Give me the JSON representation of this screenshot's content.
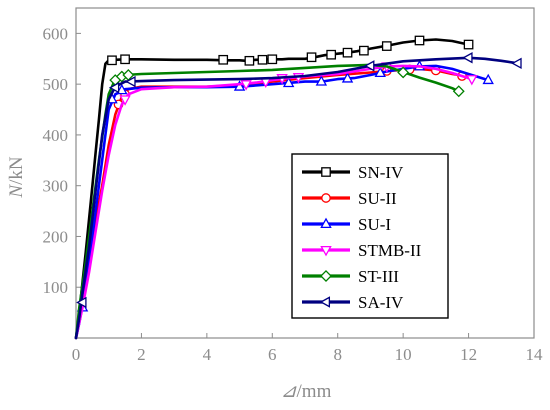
{
  "chart_data": {
    "type": "line",
    "title": "",
    "xlabel": "⊿/mm",
    "xlabel_symbol": "⊿",
    "xlabel_unit": "/mm",
    "ylabel": "N/kN",
    "ylabel_symbol": "N",
    "ylabel_unit": "/kN",
    "xlim": [
      0,
      14
    ],
    "ylim": [
      0,
      650
    ],
    "xticks": [
      0,
      2,
      4,
      6,
      8,
      10,
      12,
      14
    ],
    "yticks": [
      100,
      200,
      300,
      400,
      500,
      600
    ],
    "grid": false,
    "legend_position": "lower-right",
    "series": [
      {
        "name": "SN-IV",
        "color": "#000000",
        "marker": "square",
        "points": [
          [
            0,
            0
          ],
          [
            0.1,
            50
          ],
          [
            0.2,
            110
          ],
          [
            0.3,
            170
          ],
          [
            0.4,
            235
          ],
          [
            0.5,
            300
          ],
          [
            0.6,
            365
          ],
          [
            0.7,
            430
          ],
          [
            0.8,
            500
          ],
          [
            0.9,
            540
          ],
          [
            1.0,
            547
          ],
          [
            1.2,
            548
          ],
          [
            1.5,
            549
          ],
          [
            2,
            549
          ],
          [
            3,
            548
          ],
          [
            4,
            548
          ],
          [
            4.6,
            547
          ],
          [
            5,
            547
          ],
          [
            5.2,
            546
          ],
          [
            5.5,
            548
          ],
          [
            5.8,
            549
          ],
          [
            6,
            549
          ],
          [
            6.3,
            549
          ],
          [
            6.5,
            550
          ],
          [
            7,
            550
          ],
          [
            7.3,
            553
          ],
          [
            7.6,
            557
          ],
          [
            8,
            560
          ],
          [
            8.3,
            562
          ],
          [
            8.6,
            565
          ],
          [
            9,
            570
          ],
          [
            9.6,
            577
          ],
          [
            10,
            582
          ],
          [
            10.5,
            586
          ],
          [
            11,
            588
          ],
          [
            11.5,
            585
          ],
          [
            12,
            578
          ]
        ],
        "marker_points": [
          [
            1.1,
            547
          ],
          [
            1.5,
            549
          ],
          [
            4.5,
            548
          ],
          [
            5.3,
            546
          ],
          [
            5.7,
            548
          ],
          [
            6,
            549
          ],
          [
            7.2,
            553
          ],
          [
            7.8,
            558
          ],
          [
            8.3,
            562
          ],
          [
            8.8,
            566
          ],
          [
            9.5,
            575
          ],
          [
            10.5,
            586
          ],
          [
            12,
            578
          ]
        ]
      },
      {
        "name": "SU-II",
        "color": "#ff0000",
        "marker": "circle",
        "points": [
          [
            0,
            0
          ],
          [
            0.2,
            70
          ],
          [
            0.4,
            150
          ],
          [
            0.6,
            230
          ],
          [
            0.8,
            300
          ],
          [
            1.0,
            380
          ],
          [
            1.2,
            440
          ],
          [
            1.4,
            475
          ],
          [
            1.6,
            490
          ],
          [
            2,
            495
          ],
          [
            3,
            495
          ],
          [
            4,
            495
          ],
          [
            5,
            498
          ],
          [
            6,
            505
          ],
          [
            7,
            512
          ],
          [
            8,
            518
          ],
          [
            9,
            523
          ],
          [
            9.5,
            526
          ],
          [
            10,
            528
          ],
          [
            10.5,
            530
          ],
          [
            11,
            527
          ],
          [
            11.5,
            520
          ],
          [
            12,
            515
          ]
        ],
        "marker_points": [
          [
            1.3,
            460
          ],
          [
            1.5,
            480
          ],
          [
            9.5,
            526
          ],
          [
            10.2,
            529
          ],
          [
            11,
            527
          ],
          [
            11.8,
            516
          ]
        ]
      },
      {
        "name": "SU-I",
        "color": "#0000ff",
        "marker": "triangle-up",
        "points": [
          [
            0,
            0
          ],
          [
            0.1,
            30
          ],
          [
            0.3,
            100
          ],
          [
            0.5,
            200
          ],
          [
            0.7,
            300
          ],
          [
            0.9,
            400
          ],
          [
            1.0,
            450
          ],
          [
            1.2,
            480
          ],
          [
            1.5,
            490
          ],
          [
            2,
            493
          ],
          [
            3,
            494
          ],
          [
            4,
            494
          ],
          [
            5,
            495
          ],
          [
            6,
            500
          ],
          [
            7,
            505
          ],
          [
            7.5,
            505
          ],
          [
            8,
            510
          ],
          [
            8.5,
            512
          ],
          [
            9,
            518
          ],
          [
            9.5,
            525
          ],
          [
            10,
            530
          ],
          [
            10.5,
            535
          ],
          [
            11,
            536
          ],
          [
            11.5,
            530
          ],
          [
            12,
            520
          ],
          [
            12.6,
            508
          ]
        ],
        "marker_points": [
          [
            0.2,
            60
          ],
          [
            1.1,
            470
          ],
          [
            1.4,
            488
          ],
          [
            5,
            495
          ],
          [
            6.5,
            502
          ],
          [
            7.5,
            505
          ],
          [
            8.3,
            511
          ],
          [
            9.3,
            522
          ],
          [
            10.5,
            535
          ],
          [
            12.6,
            508
          ]
        ]
      },
      {
        "name": "STMB-II",
        "color": "#ff00ff",
        "marker": "triangle-down",
        "points": [
          [
            0,
            0
          ],
          [
            0.2,
            60
          ],
          [
            0.4,
            130
          ],
          [
            0.6,
            210
          ],
          [
            0.8,
            290
          ],
          [
            1.0,
            360
          ],
          [
            1.2,
            420
          ],
          [
            1.4,
            460
          ],
          [
            1.6,
            480
          ],
          [
            2,
            490
          ],
          [
            3,
            494
          ],
          [
            4,
            495
          ],
          [
            5,
            500
          ],
          [
            5.5,
            503
          ],
          [
            6,
            508
          ],
          [
            6.5,
            512
          ],
          [
            7,
            515
          ],
          [
            8,
            520
          ],
          [
            9,
            530
          ],
          [
            9.5,
            535
          ],
          [
            10,
            536
          ],
          [
            10.5,
            535
          ],
          [
            11,
            530
          ],
          [
            11.5,
            522
          ],
          [
            12.1,
            510
          ]
        ],
        "marker_points": [
          [
            1.5,
            470
          ],
          [
            5.2,
            500
          ],
          [
            5.8,
            505
          ],
          [
            6.3,
            512
          ],
          [
            6.8,
            514
          ],
          [
            9.5,
            535
          ],
          [
            12.1,
            510
          ]
        ]
      },
      {
        "name": "ST-III",
        "color": "#008000",
        "marker": "diamond",
        "points": [
          [
            0,
            0
          ],
          [
            0.1,
            60
          ],
          [
            0.3,
            150
          ],
          [
            0.5,
            250
          ],
          [
            0.7,
            350
          ],
          [
            0.9,
            440
          ],
          [
            1.0,
            480
          ],
          [
            1.2,
            510
          ],
          [
            1.5,
            518
          ],
          [
            2,
            520
          ],
          [
            3,
            522
          ],
          [
            4,
            524
          ],
          [
            5,
            526
          ],
          [
            6,
            528
          ],
          [
            7,
            532
          ],
          [
            8,
            536
          ],
          [
            9,
            538
          ],
          [
            9.5,
            535
          ],
          [
            10,
            524
          ],
          [
            10.5,
            513
          ],
          [
            11,
            503
          ],
          [
            11.5,
            492
          ],
          [
            11.7,
            486
          ]
        ],
        "marker_points": [
          [
            1.2,
            508
          ],
          [
            1.4,
            515
          ],
          [
            1.6,
            518
          ],
          [
            10,
            523
          ],
          [
            11.7,
            486
          ]
        ]
      },
      {
        "name": "SA-IV",
        "color": "#000080",
        "marker": "triangle-left",
        "points": [
          [
            0,
            0
          ],
          [
            0.1,
            40
          ],
          [
            0.2,
            90
          ],
          [
            0.4,
            180
          ],
          [
            0.6,
            290
          ],
          [
            0.8,
            400
          ],
          [
            1.0,
            470
          ],
          [
            1.2,
            495
          ],
          [
            1.5,
            505
          ],
          [
            2,
            506
          ],
          [
            3,
            508
          ],
          [
            4,
            509
          ],
          [
            5,
            510
          ],
          [
            6,
            512
          ],
          [
            7,
            516
          ],
          [
            8,
            524
          ],
          [
            9,
            536
          ],
          [
            10,
            545
          ],
          [
            11,
            549
          ],
          [
            12,
            552
          ],
          [
            12.5,
            550
          ],
          [
            13,
            546
          ],
          [
            13.5,
            541
          ]
        ],
        "marker_points": [
          [
            0.2,
            70
          ],
          [
            1.2,
            493
          ],
          [
            1.7,
            505
          ],
          [
            9,
            536
          ],
          [
            12,
            552
          ],
          [
            13.5,
            541
          ]
        ]
      }
    ]
  }
}
